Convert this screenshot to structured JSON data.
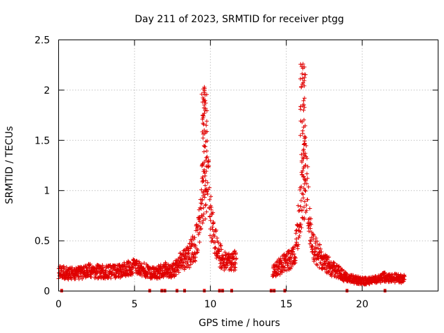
{
  "chart_data": {
    "type": "scatter",
    "title": "Day 211 of 2023, SRMTID for receiver ptgg",
    "xlabel": "GPS time / hours",
    "ylabel": "SRMTID / TECUs",
    "xlim": [
      0,
      25
    ],
    "ylim": [
      0,
      2.5
    ],
    "xticks": [
      0,
      5,
      10,
      15,
      20
    ],
    "xtick_labels": [
      "0",
      "5",
      "10",
      "15",
      "20"
    ],
    "yticks": [
      0,
      0.5,
      1,
      1.5,
      2,
      2.5
    ],
    "ytick_labels": [
      "0",
      "0.5",
      "1",
      "1.5",
      "2",
      "2.5"
    ],
    "grid": true,
    "series_color": "#e00000",
    "marker": "plus",
    "data_range_hours": [
      0,
      22.8
    ],
    "no_data_gap_hours": [
      11.8,
      14.0
    ],
    "peaks": [
      {
        "x": 9.6,
        "y": 2.03
      },
      {
        "x": 16.1,
        "y": 2.26
      }
    ],
    "profile": [
      {
        "x": 0.0,
        "y": 0.19
      },
      {
        "x": 1.0,
        "y": 0.17
      },
      {
        "x": 2.0,
        "y": 0.2
      },
      {
        "x": 3.0,
        "y": 0.19
      },
      {
        "x": 4.0,
        "y": 0.2
      },
      {
        "x": 5.0,
        "y": 0.24
      },
      {
        "x": 5.8,
        "y": 0.2
      },
      {
        "x": 6.5,
        "y": 0.18
      },
      {
        "x": 7.0,
        "y": 0.22
      },
      {
        "x": 7.5,
        "y": 0.2
      },
      {
        "x": 8.0,
        "y": 0.28
      },
      {
        "x": 8.5,
        "y": 0.33
      },
      {
        "x": 9.0,
        "y": 0.45
      },
      {
        "x": 9.3,
        "y": 0.65
      },
      {
        "x": 9.6,
        "y": 1.2
      },
      {
        "x": 9.8,
        "y": 1.1
      },
      {
        "x": 10.1,
        "y": 0.65
      },
      {
        "x": 10.5,
        "y": 0.38
      },
      {
        "x": 11.0,
        "y": 0.28
      },
      {
        "x": 11.7,
        "y": 0.3
      },
      {
        "x": 14.1,
        "y": 0.2
      },
      {
        "x": 14.6,
        "y": 0.25
      },
      {
        "x": 15.2,
        "y": 0.3
      },
      {
        "x": 15.6,
        "y": 0.42
      },
      {
        "x": 16.0,
        "y": 0.9
      },
      {
        "x": 16.3,
        "y": 1.2
      },
      {
        "x": 16.6,
        "y": 0.55
      },
      {
        "x": 17.0,
        "y": 0.38
      },
      {
        "x": 17.5,
        "y": 0.3
      },
      {
        "x": 18.0,
        "y": 0.22
      },
      {
        "x": 18.5,
        "y": 0.18
      },
      {
        "x": 19.0,
        "y": 0.13
      },
      {
        "x": 20.0,
        "y": 0.1
      },
      {
        "x": 20.5,
        "y": 0.1
      },
      {
        "x": 21.0,
        "y": 0.12
      },
      {
        "x": 21.5,
        "y": 0.14
      },
      {
        "x": 22.0,
        "y": 0.13
      },
      {
        "x": 22.8,
        "y": 0.12
      }
    ],
    "zero_markers_x": [
      0.2,
      6.0,
      6.8,
      7.0,
      7.8,
      8.3,
      9.6,
      10.6,
      10.8,
      11.4,
      14.0,
      14.2,
      14.9,
      19.0,
      21.5
    ]
  }
}
